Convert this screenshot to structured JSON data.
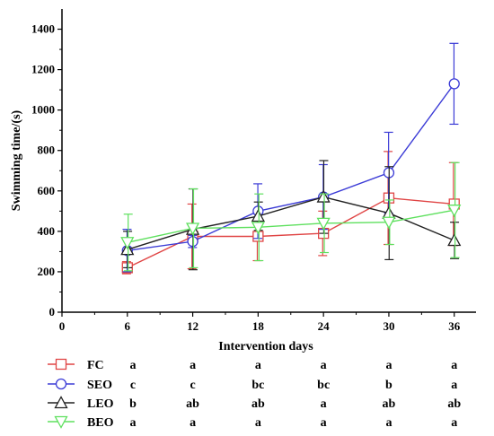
{
  "chart_data": {
    "type": "line",
    "title": "",
    "xlabel": "Intervention days",
    "ylabel": "Swimming time/(s)",
    "x": [
      6,
      12,
      18,
      24,
      30,
      36
    ],
    "x_ticks": [
      0,
      6,
      12,
      18,
      24,
      30,
      36
    ],
    "y_ticks": [
      0,
      200,
      400,
      600,
      800,
      1000,
      1200,
      1400
    ],
    "xlim": [
      0,
      38
    ],
    "ylim": [
      0,
      1500
    ],
    "grid": false,
    "legend_position": "bottom",
    "series": [
      {
        "name": "FC",
        "color": "#e04545",
        "marker": "square",
        "values": [
          220,
          375,
          375,
          390,
          565,
          535
        ],
        "errors": [
          30,
          160,
          120,
          110,
          230,
          205
        ],
        "letters": [
          "a",
          "a",
          "a",
          "a",
          "a",
          "a"
        ]
      },
      {
        "name": "SEO",
        "color": "#3b3bd6",
        "marker": "circle",
        "values": [
          305,
          350,
          500,
          570,
          690,
          1130
        ],
        "errors": [
          105,
          30,
          135,
          160,
          200,
          200
        ],
        "letters": [
          "c",
          "c",
          "bc",
          "bc",
          "b",
          "a"
        ]
      },
      {
        "name": "LEO",
        "color": "#222222",
        "marker": "triangle",
        "values": [
          310,
          410,
          475,
          570,
          490,
          355
        ],
        "errors": [
          90,
          200,
          70,
          180,
          230,
          90
        ],
        "letters": [
          "b",
          "ab",
          "ab",
          "a",
          "ab",
          "ab"
        ]
      },
      {
        "name": "BEO",
        "color": "#5ee05e",
        "marker": "triangle-down",
        "values": [
          345,
          415,
          420,
          440,
          445,
          505
        ],
        "errors": [
          140,
          195,
          165,
          145,
          110,
          235
        ],
        "letters": [
          "a",
          "a",
          "a",
          "a",
          "a",
          "a"
        ]
      }
    ]
  }
}
